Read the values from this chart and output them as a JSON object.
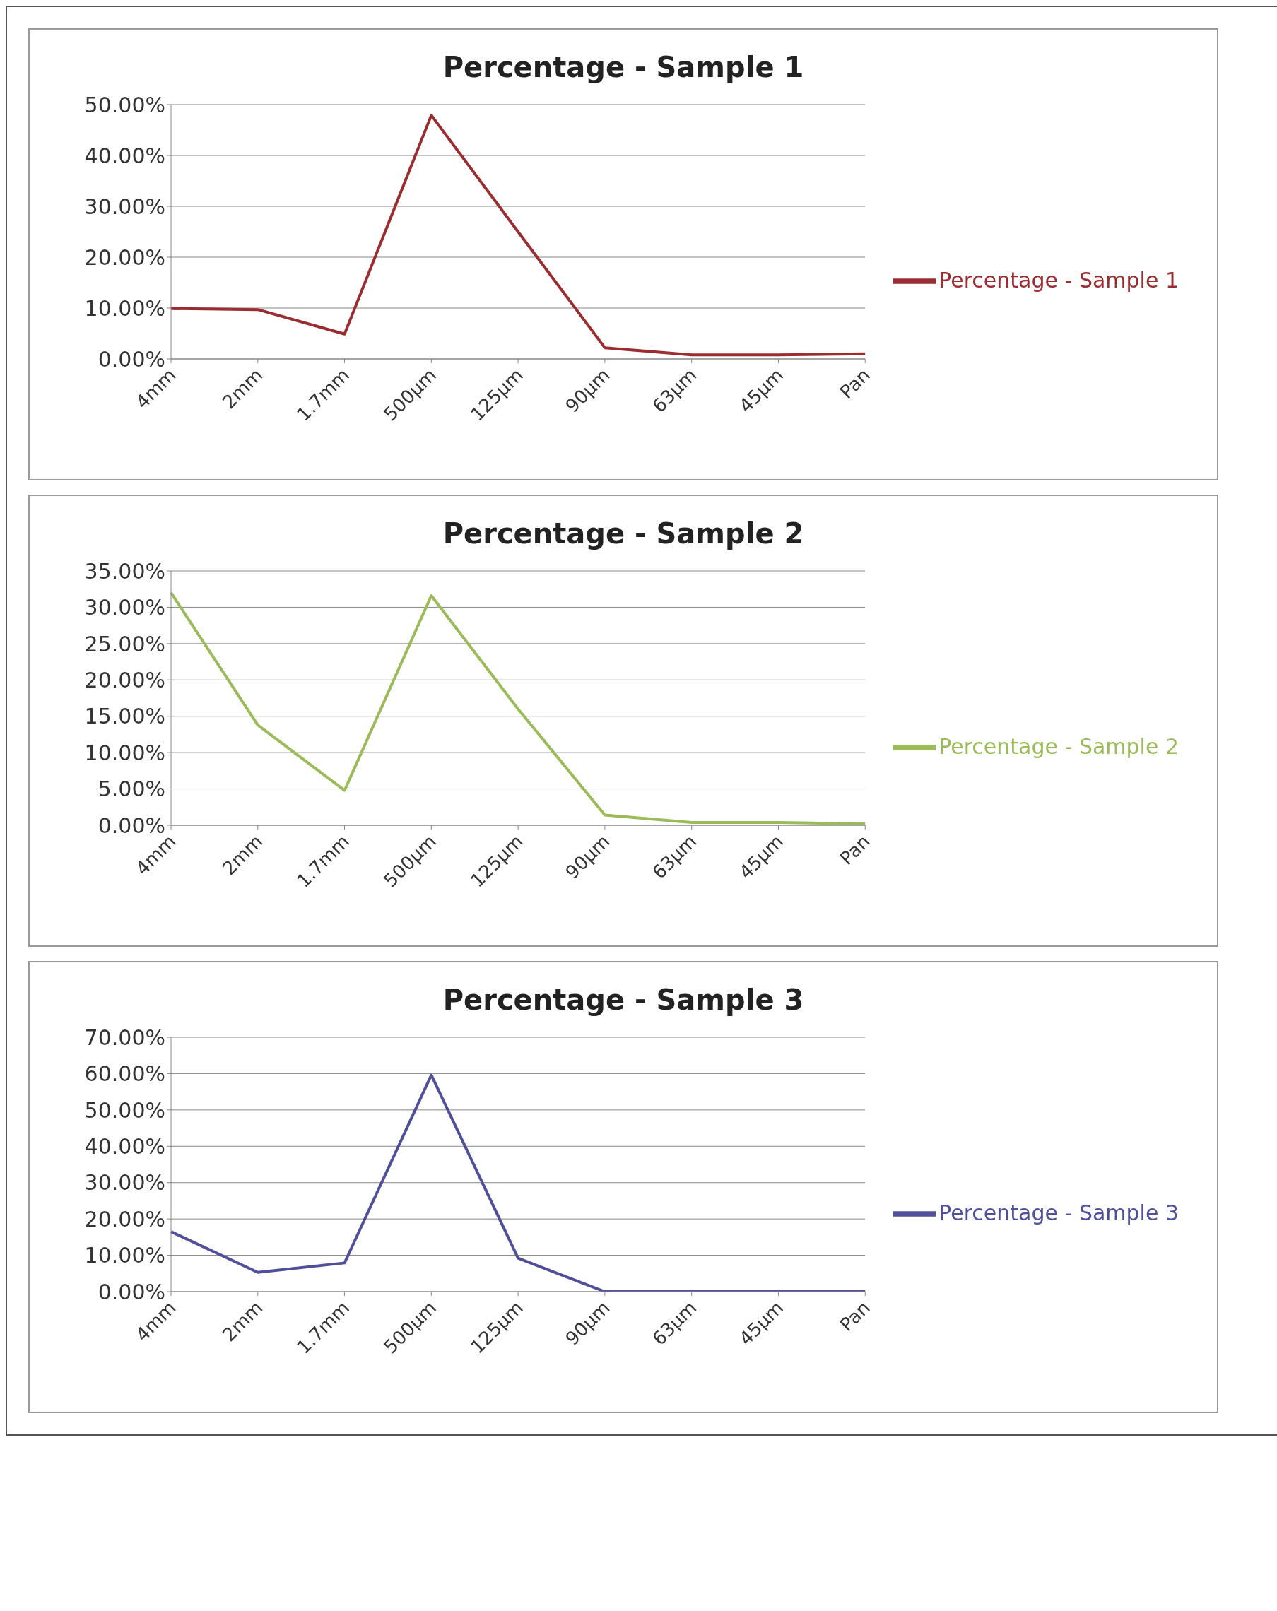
{
  "chart_data": [
    {
      "type": "line",
      "title": "Percentage - Sample 1",
      "categories": [
        "4mm",
        "2mm",
        "1.7mm",
        "500µm",
        "125µm",
        "90µm",
        "63µm",
        "45µm",
        "Pan"
      ],
      "series": [
        {
          "name": "Percentage - Sample 1",
          "color": "#9b2d30",
          "values": [
            9.9,
            9.7,
            4.9,
            47.9,
            25,
            2.2,
            0.8,
            0.8,
            1.0
          ]
        }
      ],
      "ylim": [
        0,
        50
      ],
      "yticks": [
        {
          "value": 0,
          "label": "0.00%"
        },
        {
          "value": 10,
          "label": "10.00%"
        },
        {
          "value": 20,
          "label": "20.00%"
        },
        {
          "value": 30,
          "label": "30.00%"
        },
        {
          "value": 40,
          "label": "40.00%"
        },
        {
          "value": 50,
          "label": "50.00%"
        }
      ],
      "grid": "y",
      "legend": "right",
      "marker": "none"
    },
    {
      "type": "line",
      "title": "Percentage - Sample 2",
      "categories": [
        "4mm",
        "2mm",
        "1.7mm",
        "500µm",
        "125µm",
        "90µm",
        "63µm",
        "45µm",
        "Pan"
      ],
      "series": [
        {
          "name": "Percentage - Sample 2",
          "color": "#9bbb59",
          "values": [
            32.0,
            13.8,
            4.8,
            31.6,
            16,
            1.4,
            0.4,
            0.4,
            0.2
          ]
        }
      ],
      "ylim": [
        0,
        35
      ],
      "yticks": [
        {
          "value": 0,
          "label": "0.00%"
        },
        {
          "value": 5,
          "label": "5.00%"
        },
        {
          "value": 10,
          "label": "10.00%"
        },
        {
          "value": 15,
          "label": "15.00%"
        },
        {
          "value": 20,
          "label": "20.00%"
        },
        {
          "value": 25,
          "label": "25.00%"
        },
        {
          "value": 30,
          "label": "30.00%"
        },
        {
          "value": 35,
          "label": "35.00%"
        }
      ],
      "grid": "y",
      "legend": "right",
      "marker": "none"
    },
    {
      "type": "line",
      "title": "Percentage - Sample 3",
      "categories": [
        "4mm",
        "2mm",
        "1.7mm",
        "500µm",
        "125µm",
        "90µm",
        "63µm",
        "45µm",
        "Pan"
      ],
      "series": [
        {
          "name": "Percentage - Sample 3",
          "color": "#4f4f9a",
          "values": [
            16.5,
            5.3,
            7.9,
            59.6,
            9.2,
            0,
            0,
            0,
            0
          ]
        }
      ],
      "ylim": [
        0,
        70
      ],
      "yticks": [
        {
          "value": 0,
          "label": "0.00%"
        },
        {
          "value": 10,
          "label": "10.00%"
        },
        {
          "value": 20,
          "label": "20.00%"
        },
        {
          "value": 30,
          "label": "30.00%"
        },
        {
          "value": 40,
          "label": "40.00%"
        },
        {
          "value": 50,
          "label": "50.00%"
        },
        {
          "value": 60,
          "label": "60.00%"
        },
        {
          "value": 70,
          "label": "70.00%"
        }
      ],
      "grid": "y",
      "legend": "right",
      "marker": "none"
    }
  ]
}
